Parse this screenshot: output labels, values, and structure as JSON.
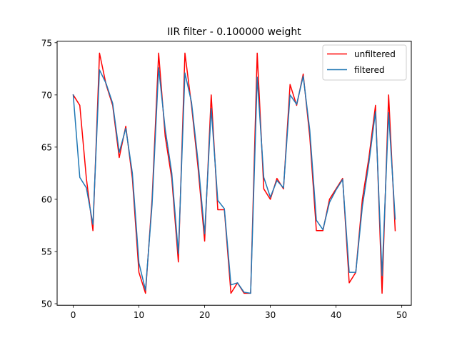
{
  "chart_data": {
    "type": "line",
    "title": "IIR filter - 0.100000 weight",
    "xlabel": "",
    "ylabel": "",
    "xlim": [
      -2.45,
      51.45
    ],
    "ylim": [
      49.85,
      75.15
    ],
    "xticks": [
      0,
      10,
      20,
      30,
      40,
      50
    ],
    "yticks": [
      50,
      55,
      60,
      65,
      70,
      75
    ],
    "grid": false,
    "legend_position": "upper right",
    "x": [
      0,
      1,
      2,
      3,
      4,
      5,
      6,
      7,
      8,
      9,
      10,
      11,
      12,
      13,
      14,
      15,
      16,
      17,
      18,
      19,
      20,
      21,
      22,
      23,
      24,
      25,
      26,
      27,
      28,
      29,
      30,
      31,
      32,
      33,
      34,
      35,
      36,
      37,
      38,
      39,
      40,
      41,
      42,
      43,
      44,
      45,
      46,
      47,
      48,
      49
    ],
    "series": [
      {
        "name": "unfiltered",
        "color": "#ff0000",
        "values": [
          70,
          69,
          62,
          57,
          74,
          71,
          69,
          64,
          67,
          62,
          53,
          51,
          60,
          74,
          66,
          62,
          54,
          74,
          69,
          63,
          56,
          70,
          59,
          59,
          51,
          52,
          51,
          51,
          74,
          61,
          60,
          62,
          61,
          71,
          69,
          72,
          66,
          57,
          57,
          60,
          61,
          62,
          52,
          53,
          60,
          64,
          69,
          51,
          70,
          57
        ]
      },
      {
        "name": "filtered",
        "color": "#1f77b4",
        "values": [
          70.0,
          62.1,
          61.1,
          57.6,
          72.4,
          71.1,
          69.2,
          64.5,
          66.8,
          62.5,
          53.9,
          51.3,
          59.5,
          72.6,
          66.7,
          62.5,
          54.8,
          72.1,
          69.3,
          63.6,
          56.7,
          68.7,
          59.9,
          59.1,
          51.8,
          52.0,
          51.1,
          51.0,
          71.7,
          62.1,
          60.2,
          61.8,
          61.1,
          70.0,
          69.1,
          71.8,
          66.6,
          58.0,
          57.1,
          59.7,
          60.9,
          61.9,
          53.0,
          53.0,
          59.3,
          63.5,
          68.4,
          52.7,
          68.3,
          58.1
        ]
      }
    ]
  }
}
